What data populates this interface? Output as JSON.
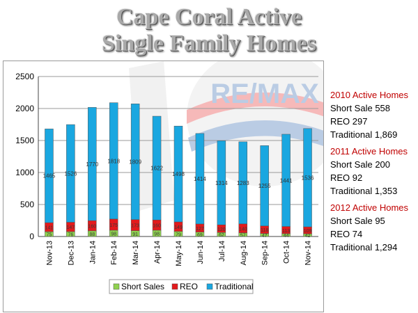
{
  "title": {
    "line1": "Cape Coral Active",
    "line2": "Single Family Homes"
  },
  "chart_data": {
    "type": "bar",
    "stacked": true,
    "categories": [
      "Nov-13",
      "Dec-13",
      "Jan-14",
      "Feb-14",
      "Mar-14",
      "Apr-14",
      "May-14",
      "Jun-14",
      "Jul-14",
      "Aug-14",
      "Sep-14",
      "Oct-14",
      "Nov-14"
    ],
    "series": [
      {
        "name": "Short Sales",
        "color": "#8fd14f",
        "values": [
          75,
          76,
          88,
          98,
          91,
          98,
          79,
          69,
          62,
          57,
          47,
          44,
          42
        ]
      },
      {
        "name": "REO",
        "color": "#e31a1c",
        "values": [
          141,
          147,
          160,
          175,
          173,
          160,
          149,
          127,
          120,
          140,
          118,
          113,
          109
        ]
      },
      {
        "name": "Traditional",
        "color": "#1aa7e0",
        "values": [
          1465,
          1526,
          1770,
          1818,
          1809,
          1622,
          1498,
          1414,
          1314,
          1283,
          1255,
          1441,
          1536
        ]
      }
    ],
    "visible_labels": {
      "Short Sales": [
        "75",
        "76",
        "88",
        "98",
        "91",
        "98",
        "79",
        "69",
        "62",
        "57",
        "47",
        "44",
        "42"
      ],
      "REO": [
        "141",
        "147",
        "160",
        "175",
        "173",
        "160",
        "149",
        "127",
        "120",
        "140",
        "118",
        "113",
        "109"
      ],
      "Traditional": [
        "1465",
        "1526",
        "1770",
        "1818",
        "1809",
        "1622",
        "1498",
        "1414",
        "1314",
        "1283",
        "1255",
        "1441",
        "1536"
      ]
    },
    "y_ticks": [
      "0",
      "500",
      "1000",
      "1500",
      "2000",
      "2500"
    ],
    "ylim": [
      0,
      2500
    ],
    "grid": true,
    "legend_position": "bottom"
  },
  "side_panel": [
    {
      "header": "2010 Active Homes",
      "lines": [
        "Short Sale 558",
        "REO 297",
        "Traditional 1,869"
      ]
    },
    {
      "header": "2011  Active Homes",
      "lines": [
        "Short Sale 200",
        "REO 92",
        "Traditional 1,353"
      ]
    },
    {
      "header": "2012  Active Homes",
      "lines": [
        "Short Sale 95",
        "REO 74",
        "Traditional 1,294"
      ]
    }
  ],
  "watermark": {
    "logo_text": "RE/MAX",
    "logo_colors": {
      "red": "#d8232a",
      "blue": "#1e5aa8"
    }
  }
}
